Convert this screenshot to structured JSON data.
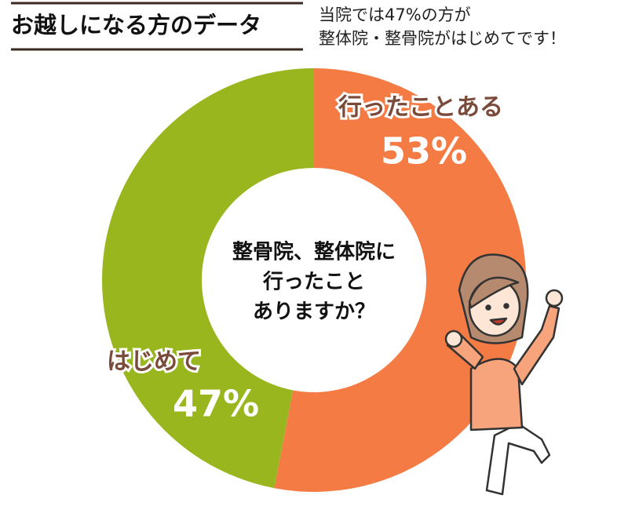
{
  "chart_data": {
    "type": "donut",
    "title": "お越しになる方のデータ",
    "subtitle": [
      "当院では47%の方が",
      "整体院・整骨院がはじめてです！"
    ],
    "center_text": [
      "整骨院、整体院に",
      "行ったこと",
      "ありますか？"
    ],
    "categories": [
      "行ったことある",
      "はじめて"
    ],
    "values": [
      53,
      47
    ],
    "value_labels": [
      "53%",
      "47%"
    ],
    "colors": [
      "#f47b43",
      "#99b61e"
    ]
  }
}
